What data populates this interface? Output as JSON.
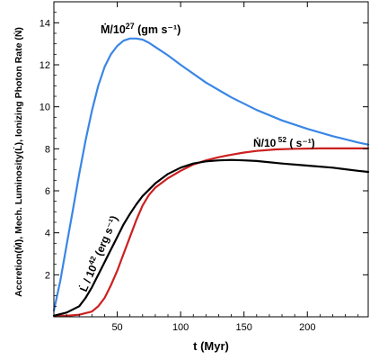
{
  "chart_data": {
    "type": "line",
    "xlabel": "t (Myr)",
    "ylabel": "Accretion(Ṁ), Mech. Luminosity(L̇), Ionizing Photon Rate (Ṅ)",
    "xlim": [
      0,
      248
    ],
    "ylim": [
      0,
      15
    ],
    "xticks": [
      50,
      100,
      150,
      200
    ],
    "yticks": [
      2,
      4,
      6,
      8,
      10,
      12,
      14
    ],
    "grid": false,
    "legend": "none",
    "series": [
      {
        "color": "#3a86e6",
        "points": [
          [
            0,
            0.3
          ],
          [
            5,
            1.7
          ],
          [
            10,
            3.4
          ],
          [
            15,
            5.1
          ],
          [
            20,
            6.8
          ],
          [
            25,
            8.4
          ],
          [
            30,
            9.8
          ],
          [
            35,
            11.0
          ],
          [
            40,
            11.9
          ],
          [
            45,
            12.5
          ],
          [
            50,
            12.9
          ],
          [
            55,
            13.15
          ],
          [
            60,
            13.25
          ],
          [
            65,
            13.25
          ],
          [
            70,
            13.2
          ],
          [
            75,
            13.05
          ],
          [
            80,
            12.85
          ],
          [
            90,
            12.45
          ],
          [
            100,
            12.0
          ],
          [
            120,
            11.15
          ],
          [
            140,
            10.45
          ],
          [
            160,
            9.85
          ],
          [
            180,
            9.35
          ],
          [
            200,
            8.95
          ],
          [
            220,
            8.6
          ],
          [
            240,
            8.3
          ],
          [
            248,
            8.2
          ]
        ]
      },
      {
        "color": "#cc1f1f",
        "points": [
          [
            0,
            0.05
          ],
          [
            10,
            0.05
          ],
          [
            20,
            0.1
          ],
          [
            30,
            0.25
          ],
          [
            35,
            0.5
          ],
          [
            40,
            0.9
          ],
          [
            45,
            1.5
          ],
          [
            50,
            2.2
          ],
          [
            55,
            3.0
          ],
          [
            60,
            3.8
          ],
          [
            65,
            4.6
          ],
          [
            70,
            5.3
          ],
          [
            75,
            5.8
          ],
          [
            80,
            6.15
          ],
          [
            90,
            6.6
          ],
          [
            100,
            6.95
          ],
          [
            110,
            7.25
          ],
          [
            120,
            7.45
          ],
          [
            130,
            7.6
          ],
          [
            140,
            7.72
          ],
          [
            150,
            7.82
          ],
          [
            160,
            7.9
          ],
          [
            175,
            7.97
          ],
          [
            190,
            8.0
          ],
          [
            210,
            8.02
          ],
          [
            230,
            8.02
          ],
          [
            248,
            8.02
          ]
        ]
      },
      {
        "color": "#000000",
        "points": [
          [
            0,
            0.05
          ],
          [
            10,
            0.2
          ],
          [
            20,
            0.5
          ],
          [
            25,
            0.9
          ],
          [
            30,
            1.4
          ],
          [
            35,
            2.0
          ],
          [
            40,
            2.6
          ],
          [
            45,
            3.2
          ],
          [
            50,
            3.8
          ],
          [
            55,
            4.4
          ],
          [
            60,
            4.9
          ],
          [
            65,
            5.35
          ],
          [
            70,
            5.75
          ],
          [
            80,
            6.35
          ],
          [
            90,
            6.8
          ],
          [
            100,
            7.1
          ],
          [
            110,
            7.3
          ],
          [
            120,
            7.4
          ],
          [
            130,
            7.45
          ],
          [
            140,
            7.47
          ],
          [
            150,
            7.45
          ],
          [
            160,
            7.42
          ],
          [
            180,
            7.3
          ],
          [
            200,
            7.2
          ],
          [
            220,
            7.1
          ],
          [
            240,
            6.95
          ],
          [
            248,
            6.9
          ]
        ]
      }
    ],
    "annotations": [
      {
        "id": "mdot",
        "base": "Ṁ/10",
        "exp": "27",
        "rest": " (gm s⁻¹)"
      },
      {
        "id": "ndot",
        "base": "Ṅ/10",
        "exp": " 52",
        "rest": " ( s⁻¹)"
      },
      {
        "id": "ldot",
        "base": "L̇ / 10",
        "exp": "42",
        "rest": " (erg s⁻¹)"
      }
    ]
  }
}
